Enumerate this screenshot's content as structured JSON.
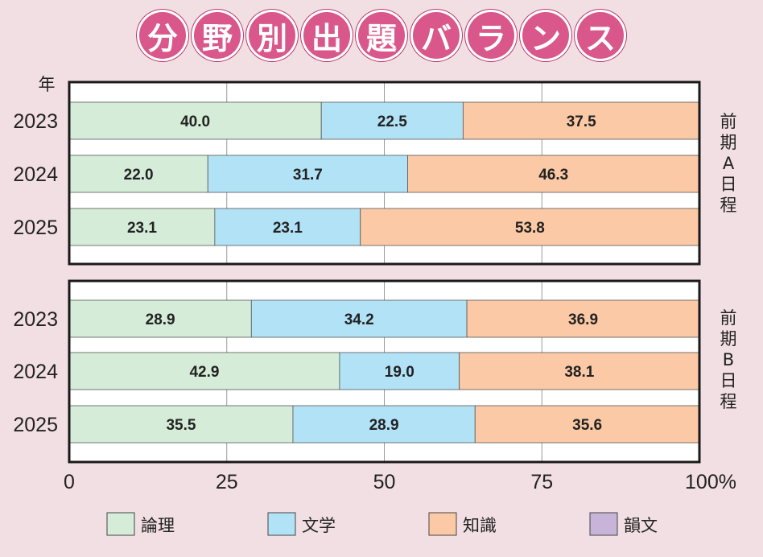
{
  "title_chars": [
    "分",
    "野",
    "別",
    "出",
    "題",
    "バ",
    "ラ",
    "ン",
    "ス"
  ],
  "chart_data": {
    "type": "bar",
    "orientation": "horizontal-stacked",
    "year_label": "年",
    "xlim": [
      0,
      100
    ],
    "x_ticks": [
      "0",
      "25",
      "50",
      "75",
      "100%"
    ],
    "x_tick_values": [
      0,
      25,
      50,
      75,
      100
    ],
    "grid": true,
    "legend_placement": "bottom",
    "series": [
      {
        "name": "論理",
        "color": "#d4ecd8"
      },
      {
        "name": "文学",
        "color": "#b2e2f6"
      },
      {
        "name": "知識",
        "color": "#fbc9a5"
      },
      {
        "name": "韻文",
        "color": "#c7b4d8"
      }
    ],
    "panels": [
      {
        "label": "前期A日程",
        "rows": [
          {
            "year": "2023",
            "values": [
              40.0,
              22.5,
              37.5
            ],
            "labels": [
              "40.0",
              "22.5",
              "37.5"
            ]
          },
          {
            "year": "2024",
            "values": [
              22.0,
              31.7,
              46.3
            ],
            "labels": [
              "22.0",
              "31.7",
              "46.3"
            ]
          },
          {
            "year": "2025",
            "values": [
              23.1,
              23.1,
              53.8
            ],
            "labels": [
              "23.1",
              "23.1",
              "53.8"
            ]
          }
        ]
      },
      {
        "label": "前期B日程",
        "rows": [
          {
            "year": "2023",
            "values": [
              28.9,
              34.2,
              36.9
            ],
            "labels": [
              "28.9",
              "34.2",
              "36.9"
            ]
          },
          {
            "year": "2024",
            "values": [
              42.9,
              19.0,
              38.1
            ],
            "labels": [
              "42.9",
              "19.0",
              "38.1"
            ]
          },
          {
            "year": "2025",
            "values": [
              35.5,
              28.9,
              35.6
            ],
            "labels": [
              "35.5",
              "28.9",
              "35.6"
            ]
          }
        ]
      }
    ]
  }
}
